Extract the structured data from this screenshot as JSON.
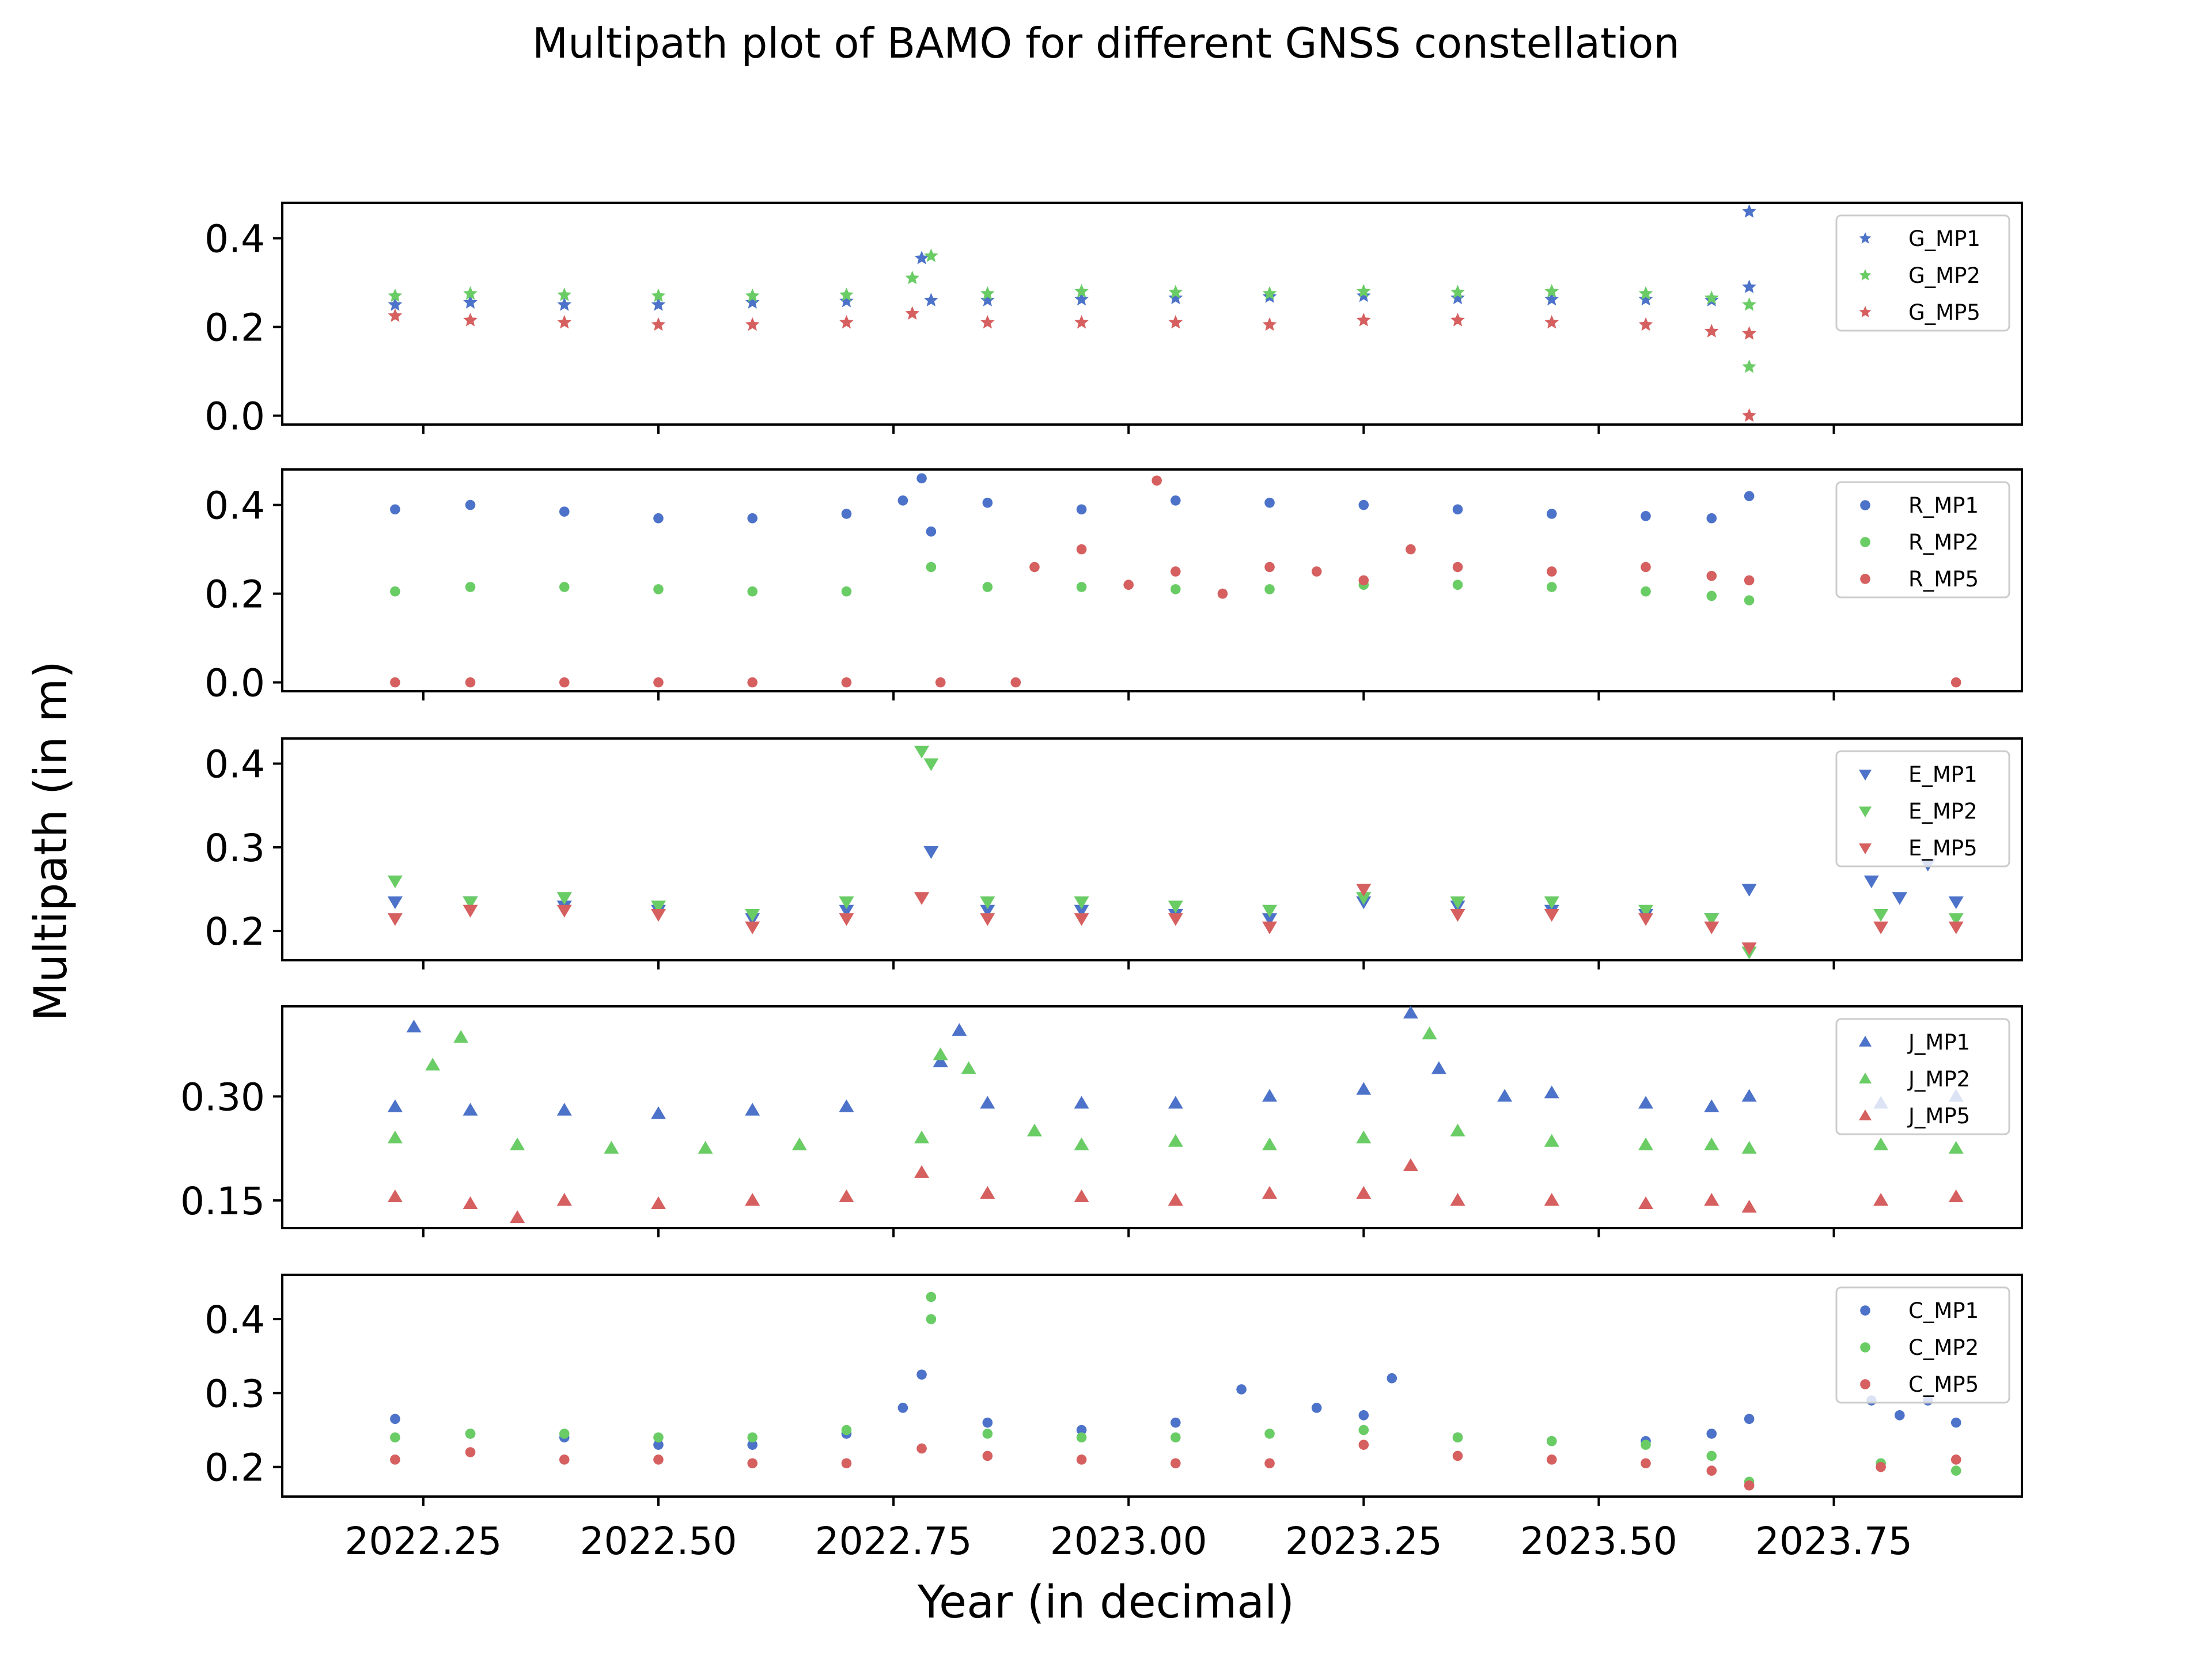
{
  "figure": {
    "title": "Multipath plot of BAMO for different GNSS constellation",
    "xlabel": "Year (in decimal)",
    "ylabel": "Multipath (in m)"
  },
  "chart_data": [
    {
      "type": "scatter",
      "constellation": "G",
      "marker": "star",
      "xlim": [
        2022.1,
        2023.95
      ],
      "ylim": [
        -0.02,
        0.48
      ],
      "yticks": [
        0.0,
        0.2,
        0.4
      ],
      "ytick_labels": [
        "0.0",
        "0.2",
        "0.4"
      ],
      "series": [
        {
          "name": "G_MP1",
          "color": "#4c72c9",
          "x": [
            2022.22,
            2022.3,
            2022.4,
            2022.5,
            2022.6,
            2022.7,
            2022.78,
            2022.79,
            2022.85,
            2022.95,
            2023.05,
            2023.15,
            2023.25,
            2023.35,
            2023.45,
            2023.55,
            2023.62,
            2023.66,
            2023.66
          ],
          "y": [
            0.25,
            0.255,
            0.25,
            0.25,
            0.255,
            0.258,
            0.355,
            0.26,
            0.26,
            0.262,
            0.265,
            0.268,
            0.27,
            0.265,
            0.262,
            0.262,
            0.26,
            0.46,
            0.29
          ]
        },
        {
          "name": "G_MP2",
          "color": "#6acc65",
          "x": [
            2022.22,
            2022.3,
            2022.4,
            2022.5,
            2022.6,
            2022.7,
            2022.77,
            2022.79,
            2022.85,
            2022.95,
            2023.05,
            2023.15,
            2023.25,
            2023.35,
            2023.45,
            2023.55,
            2023.62,
            2023.66,
            2023.66
          ],
          "y": [
            0.27,
            0.275,
            0.272,
            0.27,
            0.27,
            0.272,
            0.31,
            0.36,
            0.275,
            0.28,
            0.278,
            0.275,
            0.28,
            0.278,
            0.28,
            0.275,
            0.265,
            0.25,
            0.11
          ]
        },
        {
          "name": "G_MP5",
          "color": "#d65f5f",
          "x": [
            2022.22,
            2022.3,
            2022.4,
            2022.5,
            2022.6,
            2022.7,
            2022.77,
            2022.85,
            2022.95,
            2023.05,
            2023.15,
            2023.25,
            2023.35,
            2023.45,
            2023.55,
            2023.62,
            2023.66,
            2023.66
          ],
          "y": [
            0.225,
            0.215,
            0.21,
            0.205,
            0.205,
            0.21,
            0.23,
            0.21,
            0.21,
            0.21,
            0.205,
            0.215,
            0.215,
            0.21,
            0.205,
            0.19,
            0.185,
            0.0
          ]
        }
      ],
      "legend": {
        "placement": "upper-right"
      }
    },
    {
      "type": "scatter",
      "constellation": "R",
      "marker": "circle",
      "xlim": [
        2022.1,
        2023.95
      ],
      "ylim": [
        -0.02,
        0.48
      ],
      "yticks": [
        0.0,
        0.2,
        0.4
      ],
      "ytick_labels": [
        "0.0",
        "0.2",
        "0.4"
      ],
      "series": [
        {
          "name": "R_MP1",
          "color": "#4c72c9",
          "x": [
            2022.22,
            2022.3,
            2022.4,
            2022.5,
            2022.6,
            2022.7,
            2022.76,
            2022.78,
            2022.79,
            2022.85,
            2022.95,
            2023.05,
            2023.15,
            2023.25,
            2023.35,
            2023.45,
            2023.55,
            2023.62,
            2023.66
          ],
          "y": [
            0.39,
            0.4,
            0.385,
            0.37,
            0.37,
            0.38,
            0.41,
            0.46,
            0.34,
            0.405,
            0.39,
            0.41,
            0.405,
            0.4,
            0.39,
            0.38,
            0.375,
            0.37,
            0.42
          ]
        },
        {
          "name": "R_MP2",
          "color": "#6acc65",
          "x": [
            2022.22,
            2022.3,
            2022.4,
            2022.5,
            2022.6,
            2022.7,
            2022.79,
            2022.85,
            2022.95,
            2023.05,
            2023.15,
            2023.25,
            2023.35,
            2023.45,
            2023.55,
            2023.62,
            2023.66
          ],
          "y": [
            0.205,
            0.215,
            0.215,
            0.21,
            0.205,
            0.205,
            0.26,
            0.215,
            0.215,
            0.21,
            0.21,
            0.22,
            0.22,
            0.215,
            0.205,
            0.195,
            0.185
          ]
        },
        {
          "name": "R_MP5",
          "color": "#d65f5f",
          "x": [
            2022.22,
            2022.3,
            2022.4,
            2022.5,
            2022.6,
            2022.7,
            2022.8,
            2022.88,
            2022.9,
            2022.95,
            2023.0,
            2023.03,
            2023.05,
            2023.1,
            2023.15,
            2023.2,
            2023.25,
            2023.3,
            2023.35,
            2023.45,
            2023.55,
            2023.62,
            2023.66,
            2023.88
          ],
          "y": [
            0.0,
            0.0,
            0.0,
            0.0,
            0.0,
            0.0,
            0.0,
            0.0,
            0.26,
            0.3,
            0.22,
            0.455,
            0.25,
            0.2,
            0.26,
            0.25,
            0.23,
            0.3,
            0.26,
            0.25,
            0.26,
            0.24,
            0.23,
            0.0
          ]
        }
      ],
      "legend": {
        "placement": "upper-right"
      }
    },
    {
      "type": "scatter",
      "constellation": "E",
      "marker": "triangle-down",
      "xlim": [
        2022.1,
        2023.95
      ],
      "ylim": [
        0.165,
        0.43
      ],
      "yticks": [
        0.2,
        0.3,
        0.4
      ],
      "ytick_labels": [
        "0.2",
        "0.3",
        "0.4"
      ],
      "series": [
        {
          "name": "E_MP1",
          "color": "#4c72c9",
          "x": [
            2022.22,
            2022.3,
            2022.4,
            2022.5,
            2022.6,
            2022.7,
            2022.79,
            2022.85,
            2022.95,
            2023.05,
            2023.15,
            2023.25,
            2023.35,
            2023.45,
            2023.55,
            2023.62,
            2023.66,
            2023.79,
            2023.82,
            2023.85,
            2023.88
          ],
          "y": [
            0.235,
            0.235,
            0.23,
            0.225,
            0.215,
            0.225,
            0.295,
            0.225,
            0.225,
            0.22,
            0.215,
            0.235,
            0.23,
            0.225,
            0.22,
            0.215,
            0.25,
            0.26,
            0.24,
            0.28,
            0.235
          ]
        },
        {
          "name": "E_MP2",
          "color": "#6acc65",
          "x": [
            2022.22,
            2022.3,
            2022.4,
            2022.5,
            2022.6,
            2022.7,
            2022.78,
            2022.79,
            2022.85,
            2022.95,
            2023.05,
            2023.15,
            2023.25,
            2023.35,
            2023.45,
            2023.55,
            2023.62,
            2023.66,
            2023.8,
            2023.88
          ],
          "y": [
            0.26,
            0.235,
            0.24,
            0.23,
            0.22,
            0.235,
            0.415,
            0.4,
            0.235,
            0.235,
            0.23,
            0.225,
            0.24,
            0.235,
            0.235,
            0.225,
            0.215,
            0.175,
            0.22,
            0.215
          ]
        },
        {
          "name": "E_MP5",
          "color": "#d65f5f",
          "x": [
            2022.22,
            2022.3,
            2022.4,
            2022.5,
            2022.6,
            2022.7,
            2022.78,
            2022.85,
            2022.95,
            2023.05,
            2023.15,
            2023.25,
            2023.35,
            2023.45,
            2023.55,
            2023.62,
            2023.66,
            2023.8,
            2023.88
          ],
          "y": [
            0.215,
            0.225,
            0.225,
            0.22,
            0.205,
            0.215,
            0.24,
            0.215,
            0.215,
            0.215,
            0.205,
            0.25,
            0.22,
            0.22,
            0.215,
            0.205,
            0.18,
            0.205,
            0.205
          ]
        }
      ],
      "legend": {
        "placement": "upper-right"
      }
    },
    {
      "type": "scatter",
      "constellation": "J",
      "marker": "triangle-up",
      "xlim": [
        2022.1,
        2023.95
      ],
      "ylim": [
        0.11,
        0.43
      ],
      "yticks": [
        0.15,
        0.3
      ],
      "ytick_labels": [
        "0.15",
        "0.30"
      ],
      "series": [
        {
          "name": "J_MP1",
          "color": "#4c72c9",
          "x": [
            2022.22,
            2022.24,
            2022.3,
            2022.4,
            2022.5,
            2022.6,
            2022.7,
            2022.8,
            2022.82,
            2022.85,
            2022.95,
            2023.05,
            2023.15,
            2023.25,
            2023.3,
            2023.33,
            2023.4,
            2023.45,
            2023.55,
            2023.62,
            2023.66,
            2023.8,
            2023.88
          ],
          "y": [
            0.285,
            0.4,
            0.28,
            0.28,
            0.275,
            0.28,
            0.285,
            0.35,
            0.395,
            0.29,
            0.29,
            0.29,
            0.3,
            0.31,
            0.42,
            0.34,
            0.3,
            0.305,
            0.29,
            0.285,
            0.3,
            0.29,
            0.3
          ]
        },
        {
          "name": "J_MP2",
          "color": "#6acc65",
          "x": [
            2022.22,
            2022.26,
            2022.29,
            2022.35,
            2022.45,
            2022.55,
            2022.65,
            2022.78,
            2022.8,
            2022.83,
            2022.9,
            2022.95,
            2023.05,
            2023.15,
            2023.25,
            2023.32,
            2023.35,
            2023.45,
            2023.55,
            2023.62,
            2023.66,
            2023.8,
            2023.88
          ],
          "y": [
            0.24,
            0.345,
            0.385,
            0.23,
            0.225,
            0.225,
            0.23,
            0.24,
            0.36,
            0.34,
            0.25,
            0.23,
            0.235,
            0.23,
            0.24,
            0.39,
            0.25,
            0.235,
            0.23,
            0.23,
            0.225,
            0.23,
            0.225
          ]
        },
        {
          "name": "J_MP5",
          "color": "#d65f5f",
          "x": [
            2022.22,
            2022.3,
            2022.35,
            2022.4,
            2022.5,
            2022.6,
            2022.7,
            2022.78,
            2022.85,
            2022.95,
            2023.05,
            2023.15,
            2023.25,
            2023.3,
            2023.35,
            2023.45,
            2023.55,
            2023.62,
            2023.66,
            2023.8,
            2023.88
          ],
          "y": [
            0.155,
            0.145,
            0.125,
            0.15,
            0.145,
            0.15,
            0.155,
            0.19,
            0.16,
            0.155,
            0.15,
            0.16,
            0.16,
            0.2,
            0.15,
            0.15,
            0.145,
            0.15,
            0.14,
            0.15,
            0.155
          ]
        }
      ],
      "legend": {
        "placement": "upper-right"
      }
    },
    {
      "type": "scatter",
      "constellation": "C",
      "marker": "circle",
      "xlim": [
        2022.1,
        2023.95
      ],
      "ylim": [
        0.16,
        0.46
      ],
      "yticks": [
        0.2,
        0.3,
        0.4
      ],
      "ytick_labels": [
        "0.2",
        "0.3",
        "0.4"
      ],
      "series": [
        {
          "name": "C_MP1",
          "color": "#4c72c9",
          "x": [
            2022.22,
            2022.3,
            2022.4,
            2022.5,
            2022.6,
            2022.7,
            2022.76,
            2022.78,
            2022.85,
            2022.95,
            2023.05,
            2023.12,
            2023.2,
            2023.25,
            2023.28,
            2023.35,
            2023.45,
            2023.55,
            2023.62,
            2023.66,
            2023.79,
            2023.82,
            2023.85,
            2023.88
          ],
          "y": [
            0.265,
            0.245,
            0.24,
            0.23,
            0.23,
            0.245,
            0.28,
            0.325,
            0.26,
            0.25,
            0.26,
            0.305,
            0.28,
            0.27,
            0.32,
            0.24,
            0.235,
            0.235,
            0.245,
            0.265,
            0.29,
            0.27,
            0.29,
            0.26
          ]
        },
        {
          "name": "C_MP2",
          "color": "#6acc65",
          "x": [
            2022.22,
            2022.3,
            2022.4,
            2022.5,
            2022.6,
            2022.7,
            2022.79,
            2022.79,
            2022.85,
            2022.95,
            2023.05,
            2023.15,
            2023.25,
            2023.35,
            2023.45,
            2023.55,
            2023.62,
            2023.66,
            2023.8,
            2023.88
          ],
          "y": [
            0.24,
            0.245,
            0.245,
            0.24,
            0.24,
            0.25,
            0.43,
            0.4,
            0.245,
            0.24,
            0.24,
            0.245,
            0.25,
            0.24,
            0.235,
            0.23,
            0.215,
            0.18,
            0.205,
            0.195
          ]
        },
        {
          "name": "C_MP5",
          "color": "#d65f5f",
          "x": [
            2022.22,
            2022.3,
            2022.4,
            2022.5,
            2022.6,
            2022.7,
            2022.78,
            2022.85,
            2022.95,
            2023.05,
            2023.15,
            2023.25,
            2023.35,
            2023.45,
            2023.55,
            2023.62,
            2023.66,
            2023.8,
            2023.88
          ],
          "y": [
            0.21,
            0.22,
            0.21,
            0.21,
            0.205,
            0.205,
            0.225,
            0.215,
            0.21,
            0.205,
            0.205,
            0.23,
            0.215,
            0.21,
            0.205,
            0.195,
            0.175,
            0.2,
            0.21
          ]
        }
      ],
      "legend": {
        "placement": "upper-right"
      }
    }
  ],
  "xaxis": {
    "ticks": [
      2022.25,
      2022.5,
      2022.75,
      2023.0,
      2023.25,
      2023.5,
      2023.75
    ],
    "tick_labels": [
      "2022.25",
      "2022.50",
      "2022.75",
      "2023.00",
      "2023.25",
      "2023.50",
      "2023.75"
    ]
  }
}
